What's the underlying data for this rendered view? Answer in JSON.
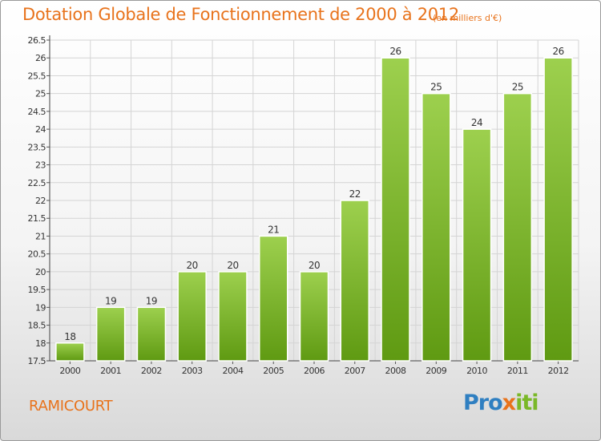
{
  "header": {
    "title": "Dotation Globale de Fonctionnement de 2000 à 2012",
    "subtitle": "(en milliers d'€)"
  },
  "footer": {
    "place": "RAMICOURT",
    "logo": {
      "part1": "Pro",
      "part2": "x",
      "part3": "iti"
    }
  },
  "colors": {
    "title": "#e8731c",
    "bar_top": "#9dd04e",
    "bar_bottom": "#5f9a12"
  },
  "chart_data": {
    "type": "bar",
    "title": "Dotation Globale de Fonctionnement de 2000 à 2012",
    "subtitle": "(en milliers d'€)",
    "xlabel": "",
    "ylabel": "",
    "categories": [
      "2000",
      "2001",
      "2002",
      "2003",
      "2004",
      "2005",
      "2006",
      "2007",
      "2008",
      "2009",
      "2010",
      "2011",
      "2012"
    ],
    "values": [
      18,
      19,
      19,
      20,
      20,
      21,
      20,
      22,
      26,
      25,
      24,
      25,
      26
    ],
    "value_labels": [
      "18",
      "19",
      "19",
      "20",
      "20",
      "21",
      "20",
      "22",
      "26",
      "25",
      "24",
      "25",
      "26"
    ],
    "ylim": [
      17.5,
      26.5
    ],
    "yticks": [
      17.5,
      18,
      18.5,
      19,
      19.5,
      20,
      20.5,
      21,
      21.5,
      22,
      22.5,
      23,
      23.5,
      24,
      24.5,
      25,
      25.5,
      26,
      26.5
    ],
    "ytick_labels": [
      "17.5",
      "18",
      "18.5",
      "19",
      "19.5",
      "20",
      "20.5",
      "21",
      "21.5",
      "22",
      "22.5",
      "23",
      "23.5",
      "24",
      "24.5",
      "25",
      "25.5",
      "26",
      "26.5"
    ],
    "grid": true
  }
}
